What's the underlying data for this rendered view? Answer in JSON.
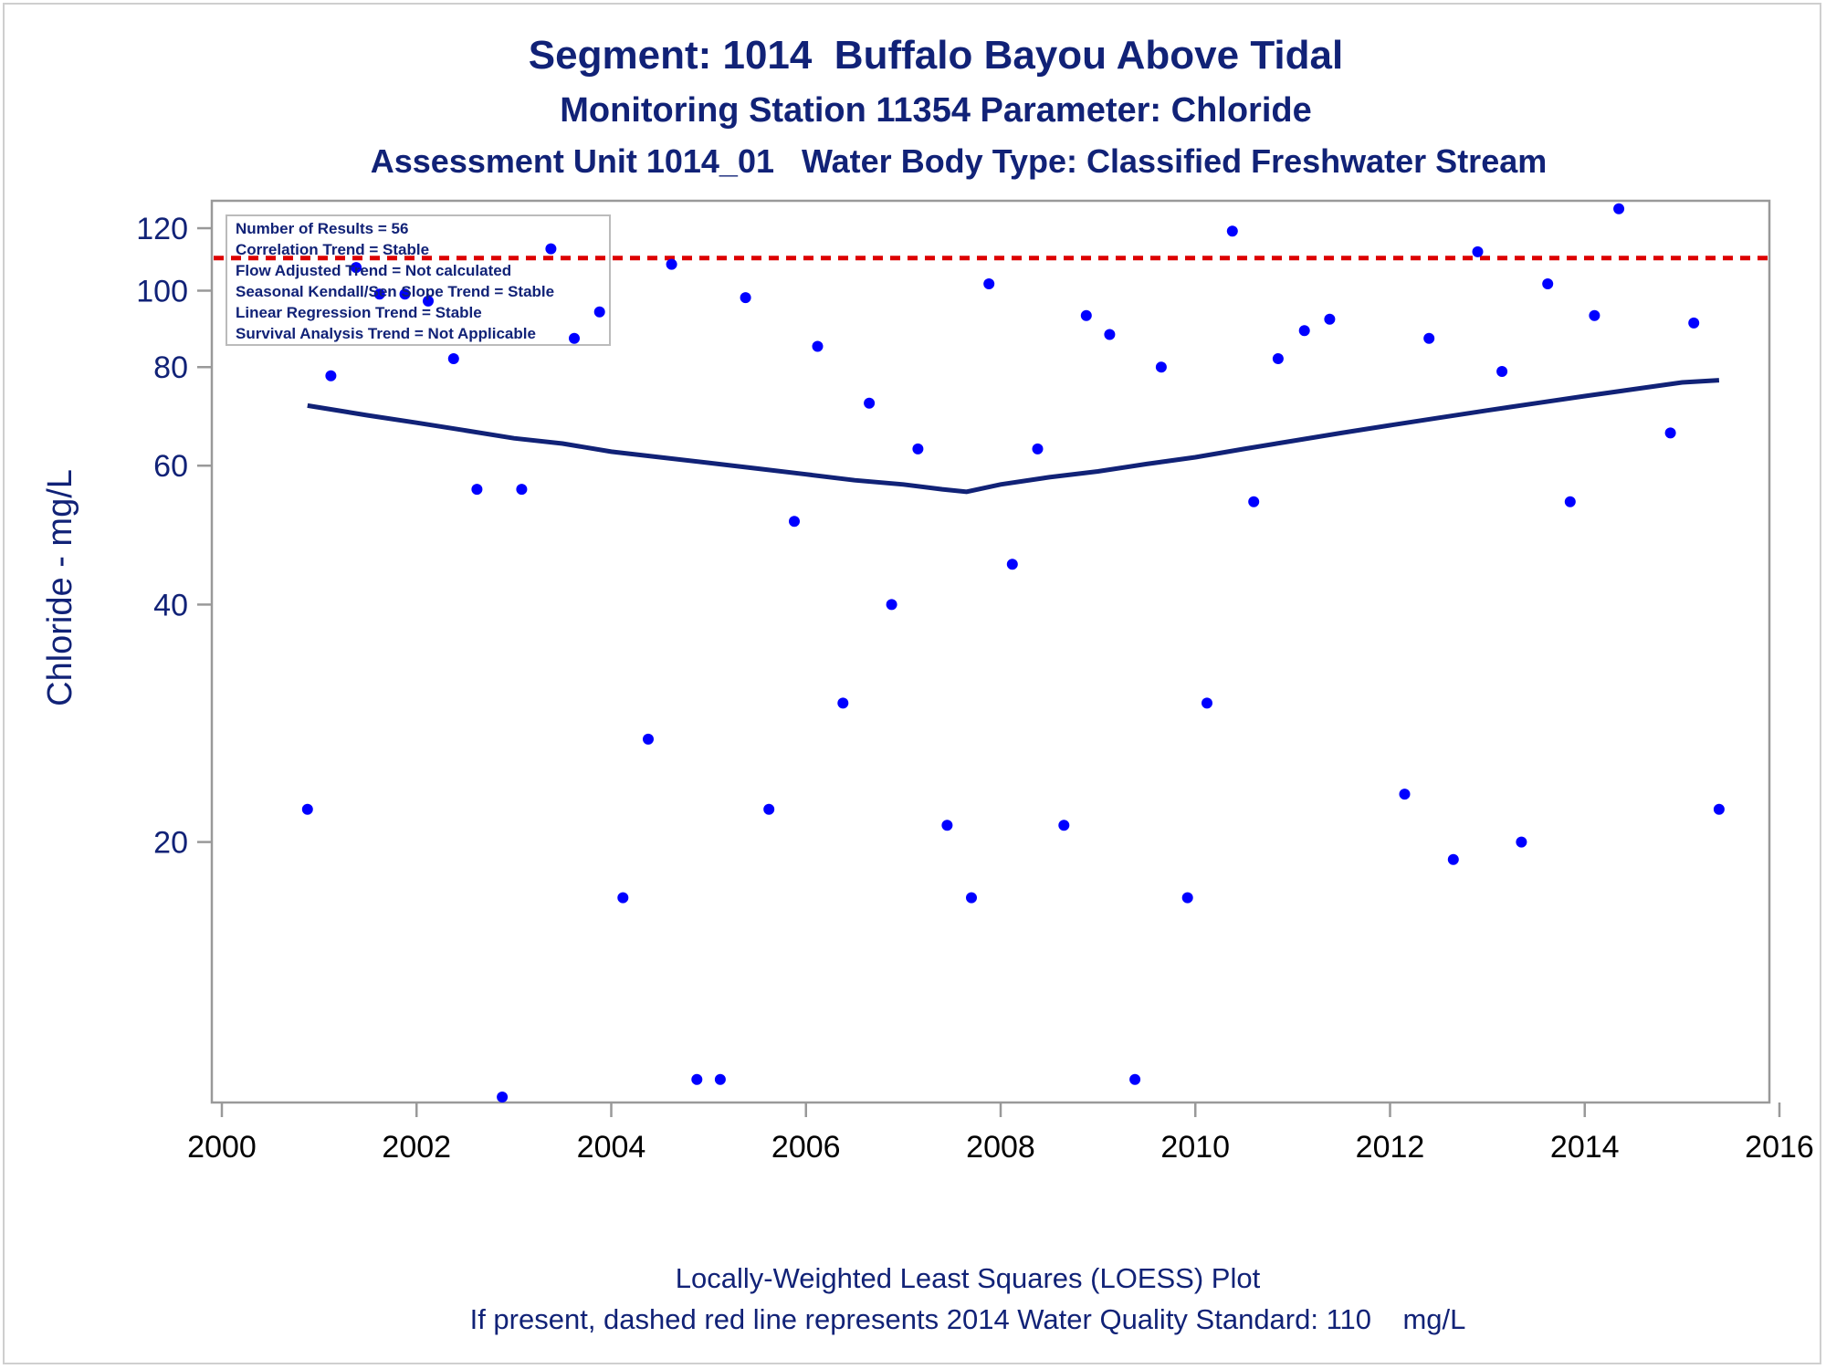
{
  "titles": {
    "line1": "Segment: 1014  Buffalo Bayou Above Tidal",
    "line2": "Monitoring Station 11354 Parameter: Chloride",
    "line3": "Assessment Unit 1014_01   Water Body Type: Classified Freshwater Stream"
  },
  "footer": {
    "line1": "Locally-Weighted Least Squares (LOESS) Plot",
    "line2": "If present, dashed red line represents 2014 Water Quality Standard: 110    mg/L"
  },
  "inset": {
    "lines": [
      "Number of Results = 56",
      "Correlation Trend = Stable",
      "Flow Adjusted Trend = Not calculated",
      "Seasonal Kendall/Sen Slope Trend = Stable",
      "Linear Regression Trend = Stable",
      "Survival Analysis Trend = Not Applicable"
    ]
  },
  "colors": {
    "title": "#112277",
    "points": "#0000ff",
    "loess": "#112277",
    "standard": "#dd0000",
    "axis": "#999999"
  },
  "chart_data": {
    "type": "scatter",
    "ylabel": "Chloride - mg/L",
    "xlabel": "",
    "y_scale": "log",
    "xlim": [
      2000,
      2016
    ],
    "ylim": [
      9.35,
      130
    ],
    "x_ticks": [
      2000,
      2002,
      2004,
      2006,
      2008,
      2010,
      2012,
      2014,
      2016
    ],
    "y_ticks": [
      20,
      40,
      60,
      80,
      100,
      120
    ],
    "grid": false,
    "legend": "none",
    "standard_line": {
      "value": 110,
      "style": "dashed",
      "color": "#dd0000"
    },
    "series": [
      {
        "type": "scatter",
        "points": [
          [
            2000.88,
            22
          ],
          [
            2001.12,
            78
          ],
          [
            2001.38,
            107
          ],
          [
            2001.62,
            99
          ],
          [
            2001.88,
            99
          ],
          [
            2002.12,
            97
          ],
          [
            2002.38,
            82
          ],
          [
            2002.62,
            56
          ],
          [
            2002.88,
            9.5
          ],
          [
            2003.08,
            56
          ],
          [
            2003.38,
            113
          ],
          [
            2003.62,
            87
          ],
          [
            2003.88,
            94
          ],
          [
            2004.12,
            17
          ],
          [
            2004.38,
            27
          ],
          [
            2004.62,
            108
          ],
          [
            2004.88,
            10
          ],
          [
            2005.12,
            10
          ],
          [
            2005.38,
            98
          ],
          [
            2005.62,
            22
          ],
          [
            2005.88,
            51
          ],
          [
            2006.12,
            85
          ],
          [
            2006.38,
            30
          ],
          [
            2006.65,
            72
          ],
          [
            2006.88,
            40
          ],
          [
            2007.15,
            63
          ],
          [
            2007.45,
            21
          ],
          [
            2007.7,
            17
          ],
          [
            2007.88,
            102
          ],
          [
            2008.12,
            45
          ],
          [
            2008.38,
            63
          ],
          [
            2008.65,
            21
          ],
          [
            2008.88,
            93
          ],
          [
            2009.12,
            88
          ],
          [
            2009.38,
            10
          ],
          [
            2009.65,
            80
          ],
          [
            2009.92,
            17
          ],
          [
            2010.12,
            30
          ],
          [
            2010.38,
            119
          ],
          [
            2010.6,
            54
          ],
          [
            2010.85,
            82
          ],
          [
            2011.12,
            89
          ],
          [
            2011.38,
            92
          ],
          [
            2012.15,
            23
          ],
          [
            2012.4,
            87
          ],
          [
            2012.65,
            19
          ],
          [
            2012.9,
            112
          ],
          [
            2013.15,
            79
          ],
          [
            2013.35,
            20
          ],
          [
            2013.62,
            102
          ],
          [
            2013.85,
            54
          ],
          [
            2014.1,
            93
          ],
          [
            2014.35,
            127
          ],
          [
            2014.88,
            66
          ],
          [
            2015.12,
            91
          ],
          [
            2015.38,
            22
          ]
        ]
      },
      {
        "type": "line",
        "name": "LOESS",
        "points": [
          [
            2000.88,
            71.5
          ],
          [
            2001.5,
            69.5
          ],
          [
            2002.0,
            68
          ],
          [
            2002.5,
            66.5
          ],
          [
            2003.0,
            65
          ],
          [
            2003.5,
            64
          ],
          [
            2004.0,
            62.5
          ],
          [
            2004.5,
            61.5
          ],
          [
            2005.0,
            60.5
          ],
          [
            2005.5,
            59.5
          ],
          [
            2006.0,
            58.5
          ],
          [
            2006.5,
            57.5
          ],
          [
            2007.0,
            56.8
          ],
          [
            2007.4,
            56
          ],
          [
            2007.65,
            55.6
          ],
          [
            2008.0,
            56.8
          ],
          [
            2008.5,
            58
          ],
          [
            2009.0,
            59
          ],
          [
            2009.5,
            60.3
          ],
          [
            2010.0,
            61.5
          ],
          [
            2010.5,
            63
          ],
          [
            2011.0,
            64.5
          ],
          [
            2011.5,
            66
          ],
          [
            2012.0,
            67.5
          ],
          [
            2012.5,
            69
          ],
          [
            2013.0,
            70.5
          ],
          [
            2013.5,
            72
          ],
          [
            2014.0,
            73.5
          ],
          [
            2014.5,
            75
          ],
          [
            2015.0,
            76.5
          ],
          [
            2015.38,
            77
          ]
        ]
      }
    ]
  }
}
